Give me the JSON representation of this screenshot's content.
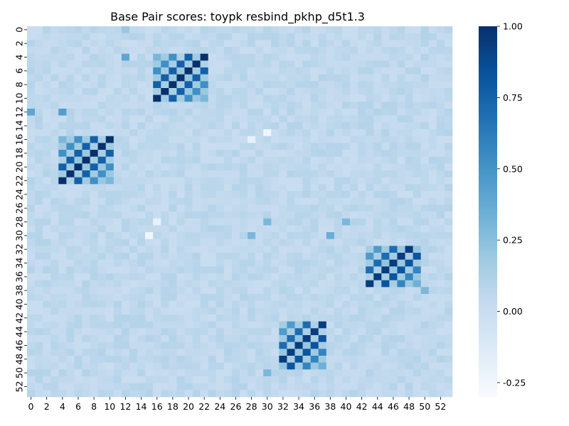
{
  "chart_data": {
    "type": "heatmap",
    "title": "Base Pair scores: toypk resbind_pkhp_d5t1.3",
    "xlabel": "",
    "ylabel": "",
    "size": 54,
    "x_tick_labels": [
      "0",
      "2",
      "4",
      "6",
      "8",
      "10",
      "12",
      "14",
      "16",
      "18",
      "20",
      "22",
      "24",
      "26",
      "28",
      "30",
      "32",
      "34",
      "36",
      "38",
      "40",
      "42",
      "44",
      "46",
      "48",
      "50",
      "52"
    ],
    "y_tick_labels": [
      "0",
      "2",
      "4",
      "6",
      "8",
      "10",
      "12",
      "14",
      "16",
      "18",
      "20",
      "22",
      "24",
      "26",
      "28",
      "30",
      "32",
      "34",
      "36",
      "38",
      "40",
      "42",
      "44",
      "46",
      "48",
      "50",
      "52"
    ],
    "colorbar": {
      "vmin": -0.3,
      "vmax": 1.0,
      "ticks": [
        "1.00",
        "0.75",
        "0.50",
        "0.25",
        "0.00",
        "-0.25"
      ],
      "tick_values": [
        1.0,
        0.75,
        0.5,
        0.25,
        0.0,
        -0.25
      ],
      "colormap": "Blues"
    },
    "background_value": 0.05,
    "helices": [
      {
        "rows": [
          4,
          10
        ],
        "cols": [
          16,
          22
        ],
        "peak": 1.0
      },
      {
        "rows": [
          16,
          22
        ],
        "cols": [
          4,
          10
        ],
        "peak": 1.0
      },
      {
        "rows": [
          32,
          37
        ],
        "cols": [
          43,
          49
        ],
        "peak": 1.0
      },
      {
        "rows": [
          43,
          49
        ],
        "cols": [
          32,
          37
        ],
        "peak": 1.0
      }
    ],
    "notable_cells": [
      {
        "row": 12,
        "col": 0,
        "value": 0.4
      },
      {
        "row": 12,
        "col": 4,
        "value": 0.45
      },
      {
        "row": 4,
        "col": 12,
        "value": 0.4
      },
      {
        "row": 0,
        "col": 12,
        "value": 0.2
      },
      {
        "row": 15,
        "col": 30,
        "value": -0.25
      },
      {
        "row": 16,
        "col": 28,
        "value": -0.2
      },
      {
        "row": 30,
        "col": 15,
        "value": -0.25
      },
      {
        "row": 28,
        "col": 16,
        "value": -0.2
      },
      {
        "row": 28,
        "col": 30,
        "value": 0.3
      },
      {
        "row": 30,
        "col": 28,
        "value": 0.3
      },
      {
        "row": 30,
        "col": 38,
        "value": 0.35
      },
      {
        "row": 28,
        "col": 40,
        "value": 0.3
      },
      {
        "row": 38,
        "col": 50,
        "value": 0.3
      },
      {
        "row": 50,
        "col": 30,
        "value": 0.3
      }
    ]
  }
}
